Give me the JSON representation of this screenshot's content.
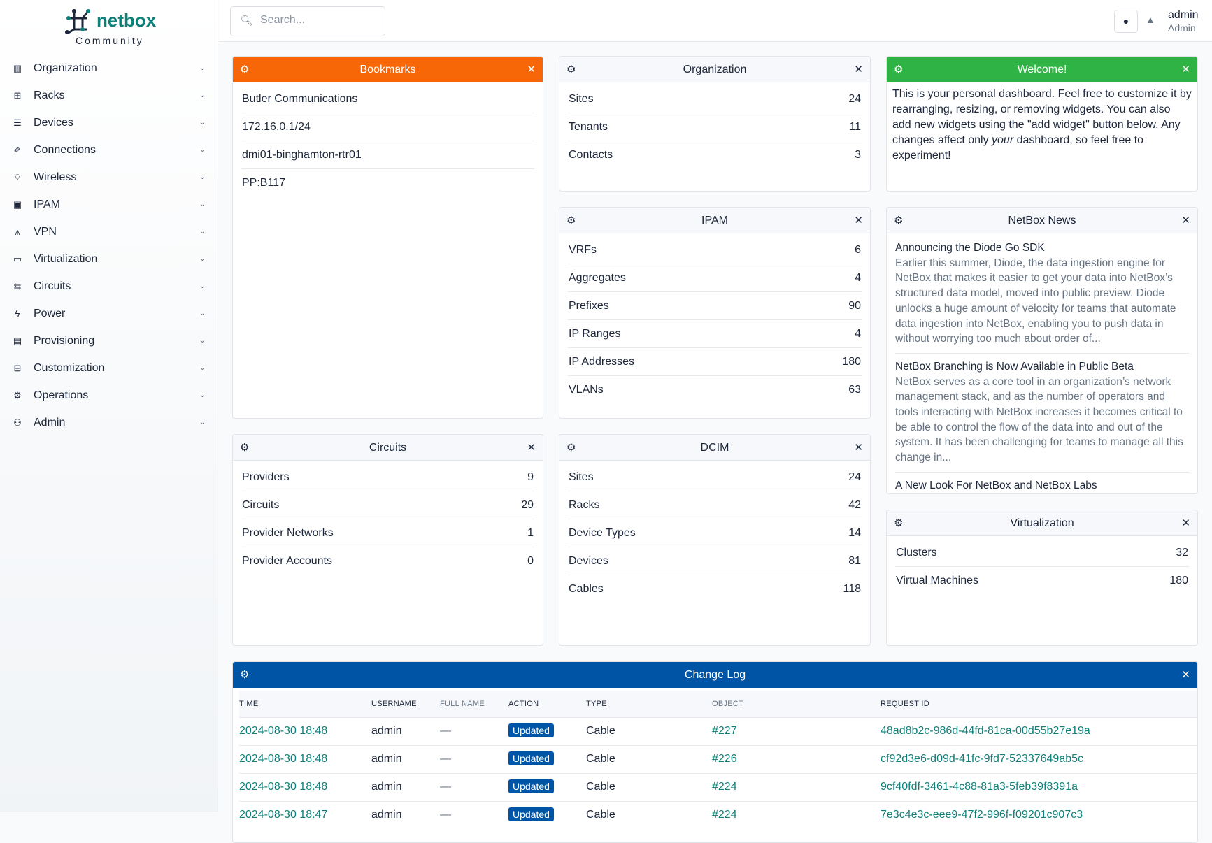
{
  "brand": {
    "name": "netbox",
    "edition": "Community",
    "color": "#0f8079"
  },
  "sidebar": {
    "items": [
      {
        "label": "Organization",
        "icon": "building-icon"
      },
      {
        "label": "Racks",
        "icon": "rack-icon"
      },
      {
        "label": "Devices",
        "icon": "server-icon"
      },
      {
        "label": "Connections",
        "icon": "plug-icon"
      },
      {
        "label": "Wireless",
        "icon": "wifi-icon"
      },
      {
        "label": "IPAM",
        "icon": "counter-icon"
      },
      {
        "label": "VPN",
        "icon": "graph-icon"
      },
      {
        "label": "Virtualization",
        "icon": "monitor-icon"
      },
      {
        "label": "Circuits",
        "icon": "transit-icon"
      },
      {
        "label": "Power",
        "icon": "flash-icon"
      },
      {
        "label": "Provisioning",
        "icon": "file-icon"
      },
      {
        "label": "Customization",
        "icon": "toolbox-icon"
      },
      {
        "label": "Operations",
        "icon": "cogs-icon"
      },
      {
        "label": "Admin",
        "icon": "users-icon"
      }
    ]
  },
  "header": {
    "search_placeholder": "Search...",
    "user": "admin",
    "role": "Admin"
  },
  "widgets": {
    "bookmarks": {
      "title": "Bookmarks",
      "color": "#f76707",
      "items": [
        "Butler Communications",
        "172.16.0.1/24",
        "dmi01-binghamton-rtr01",
        "PP:B117"
      ]
    },
    "organization": {
      "title": "Organization",
      "rows": [
        {
          "label": "Sites",
          "value": "24"
        },
        {
          "label": "Tenants",
          "value": "11"
        },
        {
          "label": "Contacts",
          "value": "3"
        }
      ]
    },
    "welcome": {
      "title": "Welcome!",
      "color": "#2fb344",
      "text_before": "This is your personal dashboard. Feel free to customize it by rearranging, resizing, or removing widgets. You can also add new widgets using the \"add widget\" button below. Any changes affect only ",
      "text_em": "your",
      "text_after": " dashboard, so feel free to experiment!"
    },
    "ipam": {
      "title": "IPAM",
      "rows": [
        {
          "label": "VRFs",
          "value": "6"
        },
        {
          "label": "Aggregates",
          "value": "4"
        },
        {
          "label": "Prefixes",
          "value": "90"
        },
        {
          "label": "IP Ranges",
          "value": "4"
        },
        {
          "label": "IP Addresses",
          "value": "180"
        },
        {
          "label": "VLANs",
          "value": "63"
        }
      ]
    },
    "news": {
      "title": "NetBox News",
      "items": [
        {
          "title": "Announcing the Diode Go SDK",
          "desc": "Earlier this summer, Diode, the data ingestion engine for NetBox that makes it easier to get your data into NetBox’s structured data model, moved into public preview. Diode unlocks a huge amount of velocity for teams that automate data ingestion into NetBox, enabling you to push data in without worrying too much about order of..."
        },
        {
          "title": "NetBox Branching is Now Available in Public Beta",
          "desc": "NetBox serves as a core tool in an organization’s network management stack, and as the number of operators and tools interacting with NetBox increases it becomes critical to be able to control the flow of the data into and out of the system. It has been challenging for teams to manage all this change in..."
        },
        {
          "title": "A New Look For NetBox and NetBox Labs",
          "desc": ""
        }
      ]
    },
    "circuits": {
      "title": "Circuits",
      "rows": [
        {
          "label": "Providers",
          "value": "9"
        },
        {
          "label": "Circuits",
          "value": "29"
        },
        {
          "label": "Provider Networks",
          "value": "1"
        },
        {
          "label": "Provider Accounts",
          "value": "0"
        }
      ]
    },
    "dcim": {
      "title": "DCIM",
      "rows": [
        {
          "label": "Sites",
          "value": "24"
        },
        {
          "label": "Racks",
          "value": "42"
        },
        {
          "label": "Device Types",
          "value": "14"
        },
        {
          "label": "Devices",
          "value": "81"
        },
        {
          "label": "Cables",
          "value": "118"
        }
      ]
    },
    "virtualization": {
      "title": "Virtualization",
      "rows": [
        {
          "label": "Clusters",
          "value": "32"
        },
        {
          "label": "Virtual Machines",
          "value": "180"
        }
      ]
    },
    "changelog": {
      "title": "Change Log",
      "color": "#0054a6",
      "columns": [
        "TIME",
        "USERNAME",
        "FULL NAME",
        "ACTION",
        "TYPE",
        "OBJECT",
        "REQUEST ID"
      ],
      "rows": [
        {
          "time": "2024-08-30 18:48",
          "user": "admin",
          "full": "—",
          "action": "Updated",
          "type": "Cable",
          "object": "#227",
          "request": "48ad8b2c-986d-44fd-81ca-00d55b27e19a"
        },
        {
          "time": "2024-08-30 18:48",
          "user": "admin",
          "full": "—",
          "action": "Updated",
          "type": "Cable",
          "object": "#226",
          "request": "cf92d3e6-d09d-41fc-9fd7-52337649ab5c"
        },
        {
          "time": "2024-08-30 18:48",
          "user": "admin",
          "full": "—",
          "action": "Updated",
          "type": "Cable",
          "object": "#224",
          "request": "9cf40fdf-3461-4c88-81a3-5feb39f8391a"
        },
        {
          "time": "2024-08-30 18:47",
          "user": "admin",
          "full": "—",
          "action": "Updated",
          "type": "Cable",
          "object": "#224",
          "request": "7e3c4e3c-eee9-47f2-996f-f09201c907c3"
        }
      ]
    }
  }
}
